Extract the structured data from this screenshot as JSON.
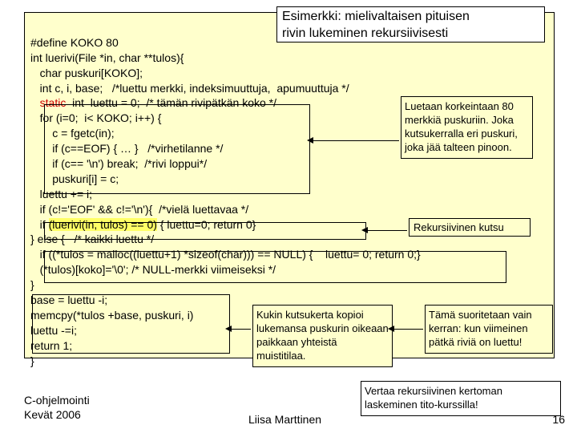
{
  "title_line1": "Esimerkki: mielivaltaisen pituisen",
  "title_line2": "rivin lukeminen rekursiivisesti",
  "code_line1": "#define KOKO 80",
  "code_line2": "int luerivi(File *in, char **tulos){",
  "code_line3": "   char puskuri[KOKO];",
  "code_line4": "   int c, i, base;   /*luettu merkki, indeksimuuttuja,  apumuuttuja */",
  "code_line5a": "   ",
  "code_line5b": "static",
  "code_line5c": "  int  luettu = 0;  /* tämän rivipätkän koko */",
  "code_line6": "   for (i=0;  i< KOKO; i++) {",
  "code_line7": "       c = fgetc(in);",
  "code_line8": "       if (c==EOF) { … }   /*virhetilanne */",
  "code_line9": "       if (c== '\\n') break;  /*rivi loppui*/",
  "code_line10": "       puskuri[i] = c;",
  "code_line11": "   luettu += i;",
  "code_line12": "   if (c!='EOF' && c!='\\n'){  /*vielä luettavaa */",
  "code_line13a": "   if ",
  "code_line13b": "(luerivi(in, tulos) == 0)",
  "code_line13c": " { luettu=0; return 0}",
  "code_line14": "} else {   /* kaikki luettu */",
  "code_line15": "   if ((*tulos = malloc((luettu+1) *sizeof(char))) == NULL) {    luettu= 0; return 0;}",
  "code_line16": "   (*tulos)[koko]='\\0'; /* NULL-merkki viimeiseksi */",
  "code_line17": "}",
  "code_line18": "base = luettu -i;",
  "code_line19": "memcpy(*tulos +base, puskuri, i)",
  "code_line20": "luettu -=i;",
  "code_line21": "return 1;",
  "code_line22": "}",
  "note1": "Luetaan korkeintaan 80 merkkiä puskuriin. Joka kutsukerralla eri puskuri, joka jää talteen pinoon.",
  "note2": "Rekursiivinen kutsu",
  "note3": "Kukin kutsukerta kopioi lukemansa puskurin oikeaan paikkaan yhteistä muistitilaa.",
  "note4": "Tämä suoritetaan vain kerran: kun viimeinen pätkä  riviä on luettu!",
  "footer_note": "Vertaa rekursiivinen kertoman laskeminen tito-kurssilla!",
  "footer_left1": "C-ohjelmointi",
  "footer_left2": "Kevät 2006",
  "footer_center": "Liisa Marttinen",
  "page": "16"
}
